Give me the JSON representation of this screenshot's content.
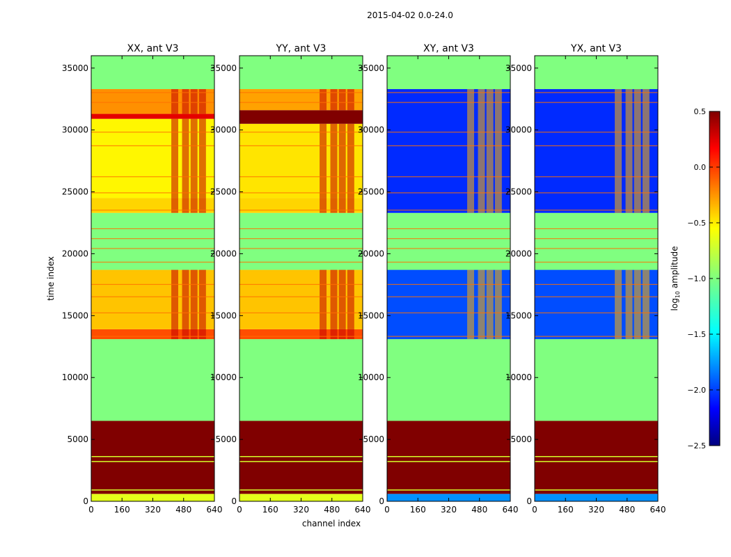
{
  "figure": {
    "suptitle": "2015-04-02 0.0-24.0",
    "xlabel": "channel index",
    "ylabel": "time index",
    "colorbar_label_main": "log",
    "colorbar_label_sub": "10",
    "colorbar_label_rest": " amplitude"
  },
  "chart_data": [
    {
      "type": "heatmap",
      "title": "XX, ant V3",
      "xlim": [
        0,
        640
      ],
      "ylim": [
        0,
        36000
      ],
      "xticks": [
        "0",
        "160",
        "320",
        "480",
        "640"
      ],
      "yticks": [
        "0",
        "5000",
        "10000",
        "15000",
        "20000",
        "25000",
        "30000",
        "35000"
      ],
      "row_bands": [
        {
          "t0": 0,
          "t1": 600,
          "value": -0.7
        },
        {
          "t0": 600,
          "t1": 6500,
          "value": 0.5
        },
        {
          "t0": 6500,
          "t1": 13100,
          "value": -1.0
        },
        {
          "t0": 13100,
          "t1": 13900,
          "value": -0.1
        },
        {
          "t0": 13900,
          "t1": 18700,
          "value": -0.45
        },
        {
          "t0": 18700,
          "t1": 23300,
          "value": -1.0
        },
        {
          "t0": 23300,
          "t1": 24500,
          "value": -0.5
        },
        {
          "t0": 24500,
          "t1": 30900,
          "value": -0.6
        },
        {
          "t0": 30900,
          "t1": 31300,
          "value": 0.2
        },
        {
          "t0": 31300,
          "t1": 33300,
          "value": -0.3
        },
        {
          "t0": 33300,
          "t1": 36000,
          "value": -1.0
        }
      ],
      "hot_columns": [
        416,
        472,
        516,
        560
      ]
    },
    {
      "type": "heatmap",
      "title": "YY, ant V3",
      "xlim": [
        0,
        640
      ],
      "ylim": [
        0,
        36000
      ],
      "xticks": [
        "0",
        "160",
        "320",
        "480",
        "640"
      ],
      "yticks": [
        "0",
        "5000",
        "10000",
        "15000",
        "20000",
        "25000",
        "30000",
        "35000"
      ],
      "row_bands": [
        {
          "t0": 0,
          "t1": 600,
          "value": -0.7
        },
        {
          "t0": 600,
          "t1": 6500,
          "value": 0.5
        },
        {
          "t0": 6500,
          "t1": 13100,
          "value": -1.0
        },
        {
          "t0": 13100,
          "t1": 13900,
          "value": -0.1
        },
        {
          "t0": 13900,
          "t1": 18700,
          "value": -0.45
        },
        {
          "t0": 18700,
          "t1": 23300,
          "value": -1.0
        },
        {
          "t0": 23300,
          "t1": 24500,
          "value": -0.5
        },
        {
          "t0": 24500,
          "t1": 30500,
          "value": -0.55
        },
        {
          "t0": 30500,
          "t1": 31600,
          "value": 0.5
        },
        {
          "t0": 31600,
          "t1": 33300,
          "value": -0.35
        },
        {
          "t0": 33300,
          "t1": 36000,
          "value": -1.0
        }
      ],
      "hot_columns": [
        416,
        472,
        516,
        560
      ]
    },
    {
      "type": "heatmap",
      "title": "XY, ant V3",
      "xlim": [
        0,
        640
      ],
      "ylim": [
        0,
        36000
      ],
      "xticks": [
        "0",
        "160",
        "320",
        "480",
        "640"
      ],
      "yticks": [
        "0",
        "5000",
        "10000",
        "15000",
        "20000",
        "25000",
        "30000",
        "35000"
      ],
      "row_bands": [
        {
          "t0": 0,
          "t1": 600,
          "value": -1.7
        },
        {
          "t0": 600,
          "t1": 6500,
          "value": 0.5
        },
        {
          "t0": 6500,
          "t1": 13100,
          "value": -1.0
        },
        {
          "t0": 13100,
          "t1": 18700,
          "value": -1.9
        },
        {
          "t0": 18700,
          "t1": 23300,
          "value": -1.0
        },
        {
          "t0": 23300,
          "t1": 33300,
          "value": -2.0
        },
        {
          "t0": 33300,
          "t1": 36000,
          "value": -1.0
        }
      ],
      "hot_columns": [
        416,
        472,
        516,
        560
      ]
    },
    {
      "type": "heatmap",
      "title": "YX, ant V3",
      "xlim": [
        0,
        640
      ],
      "ylim": [
        0,
        36000
      ],
      "xticks": [
        "0",
        "160",
        "320",
        "480",
        "640"
      ],
      "yticks": [
        "0",
        "5000",
        "10000",
        "15000",
        "20000",
        "25000",
        "30000",
        "35000"
      ],
      "row_bands": [
        {
          "t0": 0,
          "t1": 600,
          "value": -1.7
        },
        {
          "t0": 600,
          "t1": 6500,
          "value": 0.5
        },
        {
          "t0": 6500,
          "t1": 13100,
          "value": -1.0
        },
        {
          "t0": 13100,
          "t1": 18700,
          "value": -1.9
        },
        {
          "t0": 18700,
          "t1": 23300,
          "value": -1.0
        },
        {
          "t0": 23300,
          "t1": 33300,
          "value": -2.0
        },
        {
          "t0": 33300,
          "t1": 36000,
          "value": -1.0
        }
      ],
      "hot_columns": [
        416,
        472,
        516,
        560
      ]
    }
  ],
  "colorbar": {
    "range": [
      -2.5,
      0.5
    ],
    "ticks": [
      "0.5",
      "0.0",
      "−0.5",
      "−1.0",
      "−1.5",
      "−2.0",
      "−2.5"
    ],
    "tick_values": [
      0.5,
      0.0,
      -0.5,
      -1.0,
      -1.5,
      -2.0,
      -2.5
    ],
    "colormap": "jet"
  },
  "colors": {
    "dark_red": "#7f0000",
    "red": "#ff0000",
    "orange": "#ff7f00",
    "yellow": "#ffff00",
    "green": "#7fff7f",
    "cyan": "#00ffff",
    "blue": "#0000ff",
    "dark_blue": "#00007f"
  }
}
